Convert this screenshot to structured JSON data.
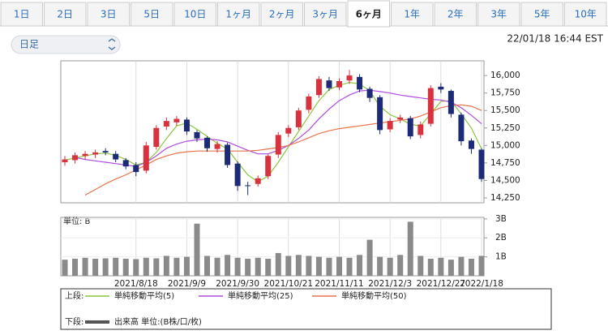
{
  "header": {
    "tabs": [
      "1日",
      "2日",
      "3日",
      "5日",
      "10日",
      "1ヶ月",
      "2ヶ月",
      "3ヶ月",
      "6ヶ月",
      "1年",
      "2年",
      "3年",
      "5年",
      "10年"
    ],
    "selected_tab": 8,
    "period_select": "日足",
    "timestamp": "22/01/18 16:44 EST"
  },
  "chart_data": {
    "type": "candlestick",
    "categories": [
      null,
      null,
      null,
      null,
      null,
      null,
      null,
      "2021/8/18",
      null,
      null,
      null,
      null,
      "2021/9/9",
      null,
      null,
      null,
      null,
      "2021/9/30",
      null,
      null,
      null,
      null,
      "2021/10/21",
      null,
      null,
      null,
      null,
      "2021/11/11",
      null,
      null,
      null,
      null,
      "2021/12/3",
      null,
      null,
      null,
      null,
      "2021/12/27",
      null,
      null,
      null,
      "2022/1/18"
    ],
    "open": [
      14760,
      14790,
      14850,
      14870,
      14920,
      14880,
      14790,
      14720,
      14640,
      14980,
      15270,
      15330,
      15370,
      15190,
      15110,
      14950,
      15010,
      14740,
      14430,
      14450,
      14560,
      14870,
      15170,
      15260,
      15510,
      15720,
      15930,
      15830,
      15930,
      15980,
      15810,
      15690,
      15230,
      15370,
      15390,
      15150,
      15310,
      15840,
      15780,
      15440,
      15070,
      14940
    ],
    "high": [
      14850,
      14900,
      14920,
      14940,
      14960,
      14920,
      14820,
      14760,
      15050,
      15290,
      15400,
      15420,
      15400,
      15220,
      15130,
      15060,
      15040,
      14770,
      14480,
      14570,
      14880,
      15190,
      15290,
      15540,
      15740,
      15990,
      15980,
      15960,
      16080,
      16020,
      15840,
      15720,
      15390,
      15440,
      15420,
      15340,
      15860,
      15890,
      15800,
      15470,
      15100,
      14960
    ],
    "low": [
      14710,
      14740,
      14800,
      14820,
      14860,
      14760,
      14660,
      14560,
      14600,
      14940,
      15220,
      15280,
      15150,
      15050,
      14910,
      14900,
      14680,
      14350,
      14290,
      14410,
      14520,
      14820,
      15120,
      15220,
      15460,
      15680,
      15780,
      15790,
      15880,
      15760,
      15620,
      15160,
      15190,
      15320,
      15090,
      15100,
      15270,
      15750,
      15400,
      15000,
      14880,
      14480
    ],
    "close": [
      14800,
      14860,
      14880,
      14900,
      14900,
      14800,
      14700,
      14620,
      15000,
      15250,
      15350,
      15380,
      15200,
      15100,
      14960,
      15020,
      14720,
      14420,
      14420,
      14530,
      14850,
      15150,
      15250,
      15500,
      15700,
      15950,
      15820,
      15920,
      16000,
      15800,
      15680,
      15220,
      15350,
      15400,
      15130,
      15300,
      15820,
      15800,
      15450,
      15060,
      14950,
      14520
    ],
    "up_color": "#d9323f",
    "down_color": "#1c2a78",
    "legend_upper": "上段:",
    "legend_lower": "下段:",
    "series": [
      {
        "name": "単純移動平均(5)",
        "color": "#8cc63f",
        "values": [
          14790,
          14820,
          14850,
          14880,
          14890,
          14860,
          14800,
          14720,
          14760,
          14900,
          15100,
          15280,
          15320,
          15230,
          15130,
          15030,
          14950,
          14760,
          14580,
          14480,
          14560,
          14760,
          14980,
          15200,
          15420,
          15640,
          15800,
          15860,
          15900,
          15880,
          15780,
          15560,
          15440,
          15380,
          15300,
          15280,
          15450,
          15630,
          15640,
          15450,
          15250,
          14950
        ]
      },
      {
        "name": "単純移動平均(25)",
        "color": "#b04ce0",
        "values": [
          null,
          14830,
          14800,
          14780,
          14760,
          14740,
          14720,
          14700,
          14760,
          14850,
          14960,
          15020,
          15060,
          15080,
          15090,
          15080,
          15050,
          14990,
          14930,
          14880,
          14880,
          14930,
          15000,
          15100,
          15220,
          15380,
          15520,
          15640,
          15720,
          15780,
          15790,
          15770,
          15750,
          15720,
          15700,
          15680,
          15660,
          15650,
          15620,
          15540,
          15430,
          15310
        ]
      },
      {
        "name": "単純移動平均(50)",
        "color": "#e8734a",
        "values": [
          null,
          null,
          14290,
          14370,
          14450,
          14520,
          14580,
          14650,
          14720,
          14800,
          14850,
          14890,
          14910,
          14920,
          14920,
          14920,
          14920,
          14920,
          14920,
          14930,
          14950,
          14970,
          15000,
          15050,
          15110,
          15170,
          15210,
          15240,
          15260,
          15280,
          15300,
          15320,
          15340,
          15360,
          15380,
          15420,
          15480,
          15540,
          15570,
          15580,
          15560,
          15500
        ]
      }
    ],
    "ylim": [
      14180,
      16210
    ],
    "yticks": [
      {
        "value": 14250,
        "label": "14,250"
      },
      {
        "value": 14500,
        "label": "14,500"
      },
      {
        "value": 14750,
        "label": "14,750"
      },
      {
        "value": 15000,
        "label": "15,000"
      },
      {
        "value": 15250,
        "label": "15,250"
      },
      {
        "value": 15500,
        "label": "15,500"
      },
      {
        "value": 15750,
        "label": "15,750"
      },
      {
        "value": 16000,
        "label": "16,000"
      }
    ],
    "volume": {
      "name": "出来高 単位:(B株/口/枚)",
      "unit_label": "単位: B",
      "color": "#8a8a8a",
      "values": [
        0.85,
        0.9,
        0.95,
        0.9,
        0.92,
        0.95,
        0.9,
        0.88,
        0.95,
        0.92,
        1.05,
        0.95,
        1.0,
        2.75,
        1.05,
        0.95,
        1.1,
        0.95,
        0.9,
        0.95,
        0.9,
        1.2,
        1.05,
        1.1,
        1.05,
        1.0,
        0.95,
        1.0,
        0.95,
        1.1,
        1.9,
        1.0,
        0.95,
        1.1,
        2.85,
        1.05,
        0.9,
        0.95,
        0.85,
        1.0,
        0.9,
        1.05
      ],
      "ylim": [
        0,
        3.08
      ],
      "yticks": [
        {
          "value": 1,
          "label": "1B"
        },
        {
          "value": 2,
          "label": "2B"
        },
        {
          "value": 3,
          "label": "3B"
        }
      ]
    }
  }
}
